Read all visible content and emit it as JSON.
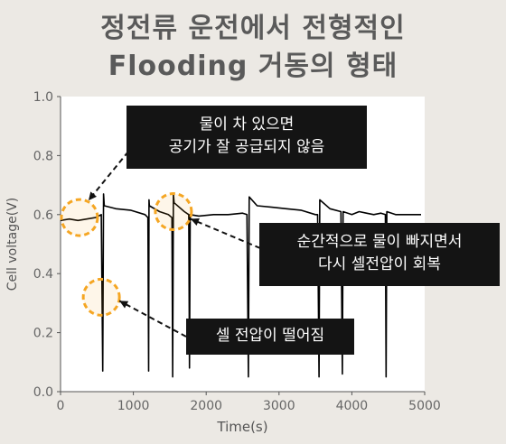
{
  "title_line1": "정전류 운전에서 전형적인",
  "title_line2": "Flooding 거동의 형태",
  "callouts": {
    "flooding": [
      "물이 차 있으면",
      "공기가 잘 공급되지 않음"
    ],
    "recovery": [
      "순간적으로 물이 빠지면서",
      "다시 셀전압이 회복"
    ],
    "drop": [
      "셀 전압이 떨어짐"
    ]
  },
  "colors": {
    "background": "#ece9e4",
    "plot_background": "#ffffff",
    "line": "#000000",
    "circle": "#f5a623",
    "callout_bg": "#141414",
    "callout_text": "#ffffff",
    "title": "#5a5a5a"
  },
  "chart_data": {
    "type": "line",
    "title": "",
    "xlabel": "Time(s)",
    "ylabel": "Cell voltage(V)",
    "xlim": [
      0,
      5000
    ],
    "ylim": [
      0.0,
      1.0
    ],
    "xticks": [
      0,
      1000,
      2000,
      3000,
      4000,
      5000
    ],
    "yticks": [
      0.0,
      0.2,
      0.4,
      0.6,
      0.8,
      1.0
    ],
    "ytick_labels": [
      "0.0",
      "0.2",
      "0.4",
      "0.6",
      "0.8",
      "1.0"
    ],
    "grid": false,
    "series": [
      {
        "x": [
          0,
          120,
          240,
          360,
          480,
          560,
          580,
          590,
          600,
          760,
          960,
          1160,
          1200,
          1210,
          1215,
          1220,
          1360,
          1480,
          1530,
          1540,
          1550,
          1560,
          1700,
          1760,
          1770,
          1780,
          1900,
          2100,
          2300,
          2500,
          2560,
          2580,
          2590,
          2700,
          2900,
          3100,
          3300,
          3500,
          3530,
          3550,
          3560,
          3700,
          3850,
          3870,
          3880,
          4000,
          4100,
          4200,
          4300,
          4400,
          4460,
          4470,
          4480,
          4600,
          4700,
          4800,
          4900,
          4950
        ],
        "y": [
          0.58,
          0.585,
          0.58,
          0.585,
          0.59,
          0.6,
          0.07,
          0.67,
          0.63,
          0.62,
          0.615,
          0.6,
          0.59,
          0.07,
          0.65,
          0.63,
          0.61,
          0.6,
          0.59,
          0.05,
          0.67,
          0.64,
          0.61,
          0.6,
          0.08,
          0.6,
          0.595,
          0.6,
          0.6,
          0.605,
          0.6,
          0.05,
          0.66,
          0.63,
          0.625,
          0.62,
          0.615,
          0.6,
          0.6,
          0.05,
          0.65,
          0.62,
          0.61,
          0.06,
          0.61,
          0.6,
          0.61,
          0.605,
          0.6,
          0.605,
          0.6,
          0.05,
          0.61,
          0.6,
          0.6,
          0.6,
          0.6,
          0.6
        ]
      }
    ],
    "highlights": [
      {
        "x": 260,
        "y": 0.59,
        "label": "flooding"
      },
      {
        "x": 1550,
        "y": 0.61,
        "label": "recovery"
      },
      {
        "x": 560,
        "y": 0.32,
        "label": "drop"
      }
    ]
  }
}
